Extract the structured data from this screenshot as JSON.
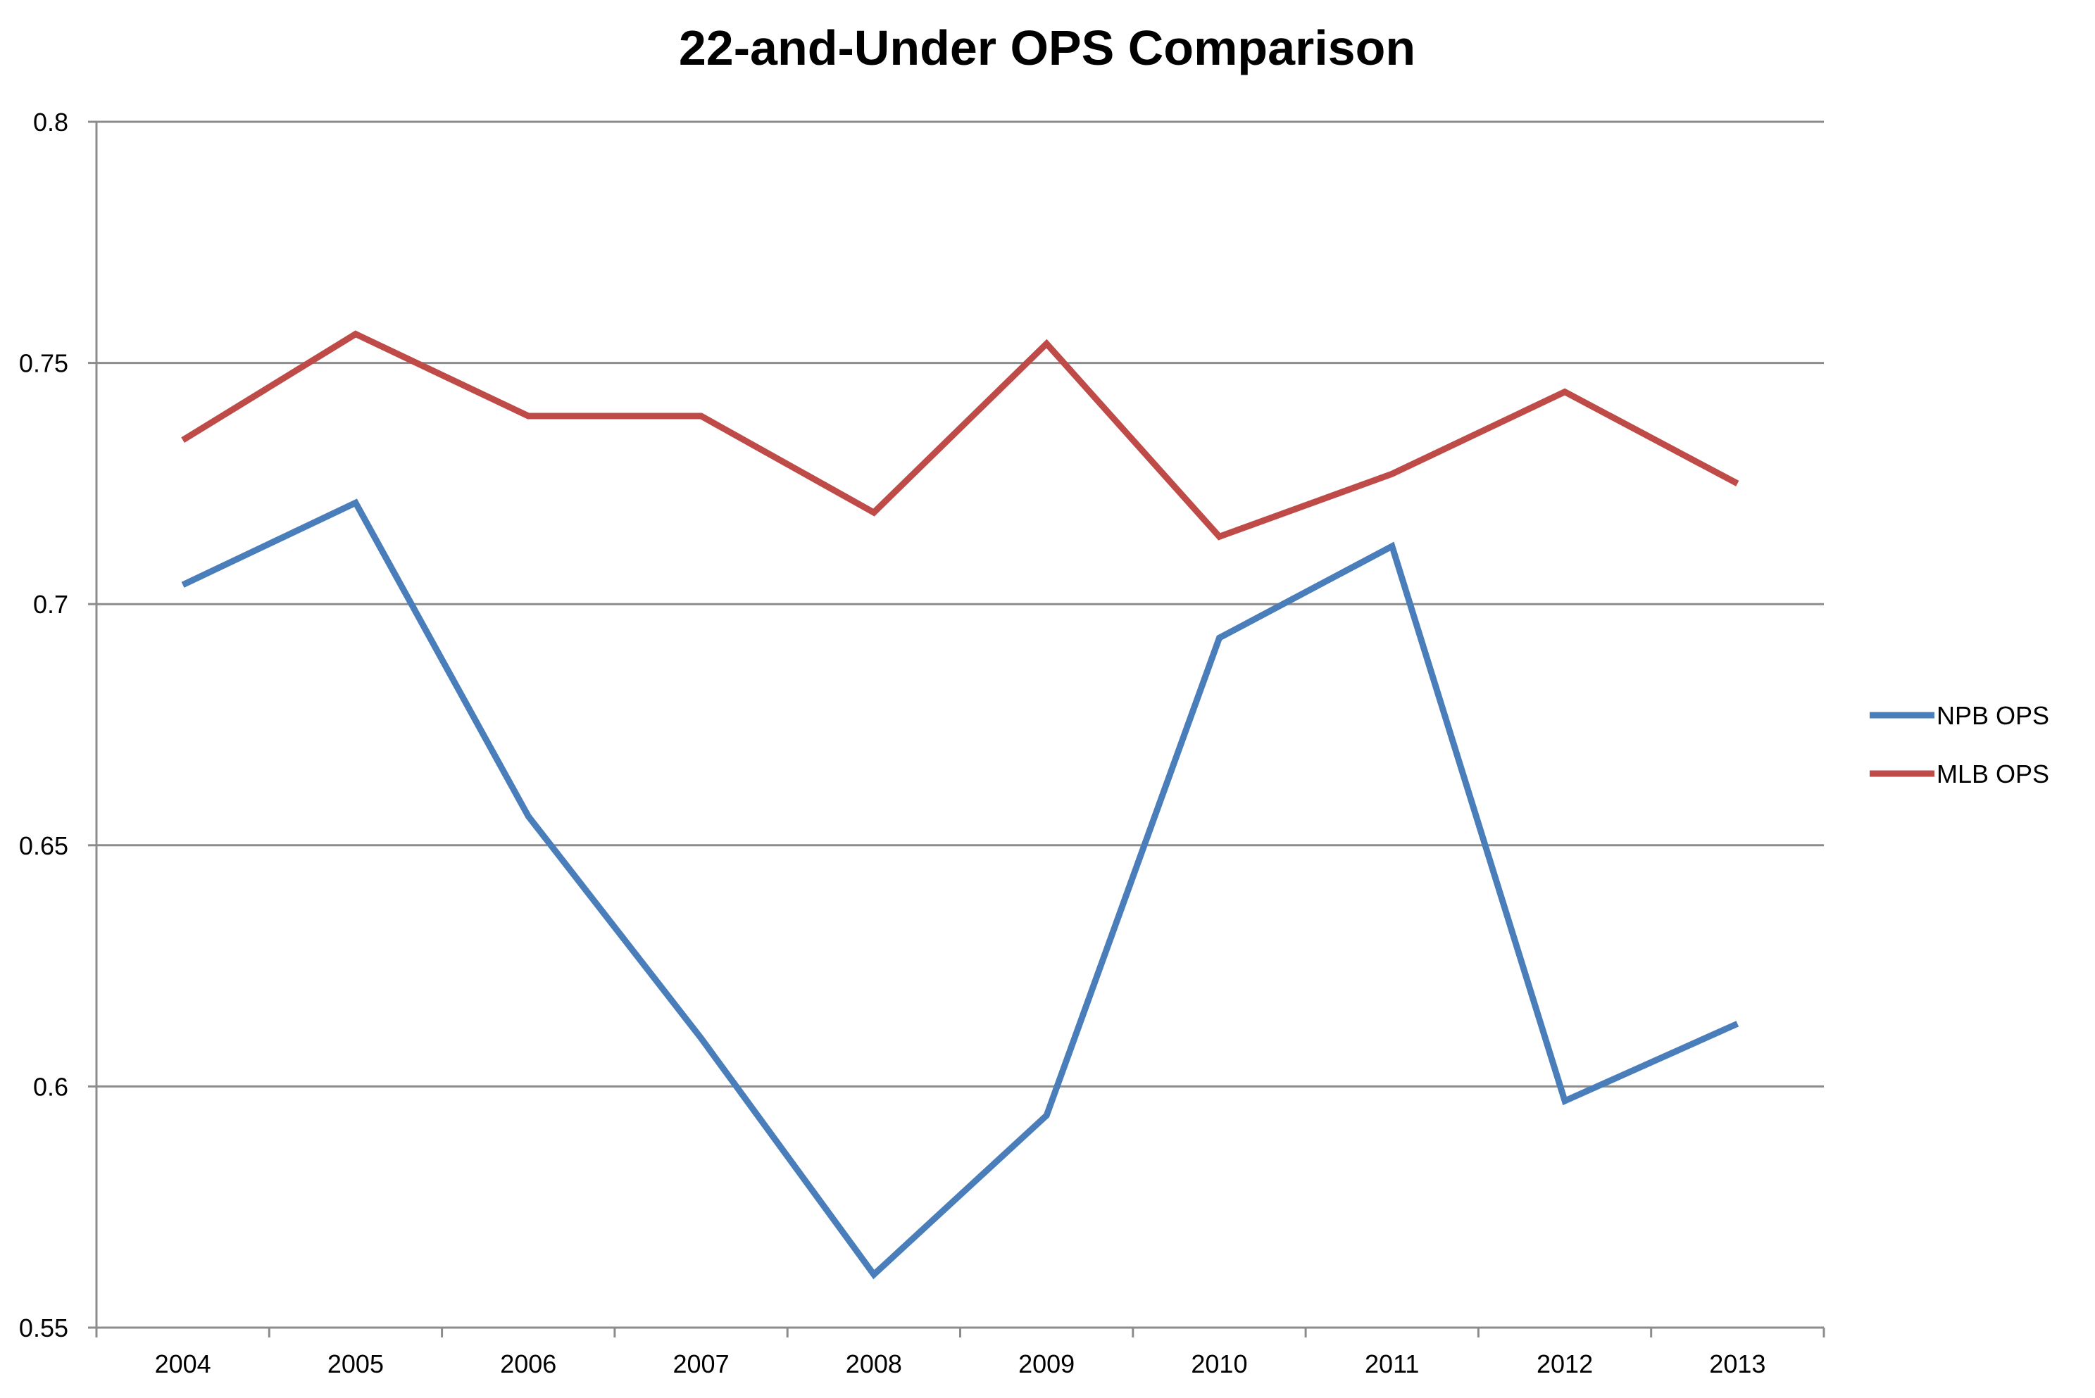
{
  "chart_data": {
    "type": "line",
    "title": "22-and-Under OPS Comparison",
    "xlabel": "",
    "ylabel": "",
    "categories": [
      "2004",
      "2005",
      "2006",
      "2007",
      "2008",
      "2009",
      "2010",
      "2011",
      "2012",
      "2013"
    ],
    "ylim": [
      0.55,
      0.8
    ],
    "yticks": [
      "0.8",
      "0.75",
      "0.7",
      "0.65",
      "0.6",
      "0.55"
    ],
    "grid": "horizontal",
    "legend_position": "right",
    "series": [
      {
        "name": "NPB OPS",
        "color": "#4a7ebb",
        "values": [
          0.704,
          0.721,
          0.656,
          0.61,
          0.561,
          0.594,
          0.693,
          0.712,
          0.597,
          0.613
        ]
      },
      {
        "name": "MLB OPS",
        "color": "#be4b48",
        "values": [
          0.734,
          0.756,
          0.739,
          0.739,
          0.719,
          0.754,
          0.714,
          0.727,
          0.744,
          0.725
        ]
      }
    ]
  }
}
